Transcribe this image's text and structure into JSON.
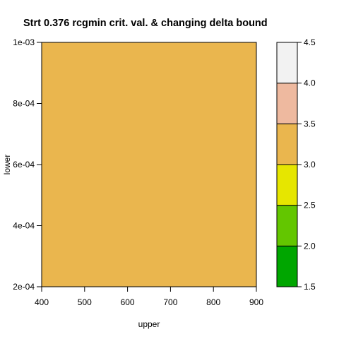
{
  "chart_data": {
    "type": "heatmap",
    "title": "Strt 0.376 rcgmin crit. val. & changing delta bound",
    "xlabel": "upper",
    "ylabel": "lower",
    "xlim": [
      400,
      900
    ],
    "ylim": [
      0.0002,
      0.001
    ],
    "x_ticks": [
      "400",
      "500",
      "600",
      "700",
      "800",
      "900"
    ],
    "x_tick_values": [
      400,
      500,
      600,
      700,
      800,
      900
    ],
    "y_ticks": [
      "2e-04",
      "4e-04",
      "6e-04",
      "8e-04",
      "1e-03"
    ],
    "y_tick_values": [
      0.0002,
      0.0004,
      0.0006,
      0.0008,
      0.001
    ],
    "fill_region": {
      "x": [
        400,
        900
      ],
      "y": [
        0.0002,
        0.001
      ],
      "level_range": [
        3.0,
        3.5
      ],
      "color": "#EAB64E"
    },
    "legend": {
      "placement": "right",
      "levels": [
        1.5,
        2.0,
        2.5,
        3.0,
        3.5,
        4.0,
        4.5
      ],
      "tick_labels": [
        "1.5",
        "2.0",
        "2.5",
        "3.0",
        "3.5",
        "4.0",
        "4.5"
      ],
      "colors": [
        "#00A600",
        "#63C600",
        "#E6E600",
        "#EAB64E",
        "#EEB99F",
        "#F2F2F2"
      ]
    }
  }
}
